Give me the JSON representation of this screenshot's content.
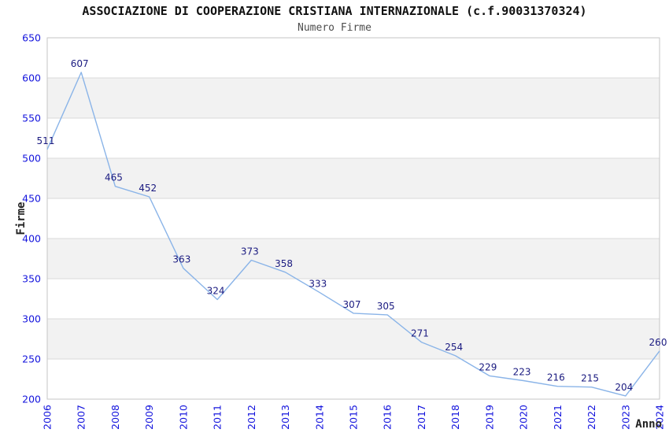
{
  "header": {
    "title": "ASSOCIAZIONE DI COOPERAZIONE CRISTIANA INTERNAZIONALE (c.f.90031370324)",
    "subtitle": "Numero Firme"
  },
  "chart_data": {
    "type": "line",
    "title": "ASSOCIAZIONE DI COOPERAZIONE CRISTIANA INTERNAZIONALE (c.f.90031370324)",
    "subtitle": "Numero Firme",
    "xlabel": "Anno",
    "ylabel": "Firme",
    "x": [
      2006,
      2007,
      2008,
      2009,
      2010,
      2011,
      2012,
      2013,
      2014,
      2015,
      2016,
      2017,
      2018,
      2019,
      2020,
      2021,
      2022,
      2023,
      2024
    ],
    "series": [
      {
        "name": "Numero Firme",
        "values": [
          511,
          607,
          465,
          452,
          363,
          324,
          373,
          358,
          333,
          307,
          305,
          271,
          254,
          229,
          223,
          216,
          215,
          204,
          260
        ]
      }
    ],
    "ylim": [
      200,
      650
    ],
    "ytick_step": 50,
    "yticks": [
      200,
      250,
      300,
      350,
      400,
      450,
      500,
      550,
      600,
      650
    ],
    "grid": true,
    "banded_background": true,
    "legend_position": "none",
    "data_labels_visible": true
  },
  "colors": {
    "line": "#8ab4e8",
    "tick_label": "#1414dd",
    "data_label": "#1a1a80",
    "gridline": "#d9d9d9",
    "plot_border": "#c6c6c6",
    "band_gray": "#f2f2f2",
    "band_white": "#ffffff",
    "title": "#111111",
    "subtitle": "#4d4d4d",
    "axis_title": "#222222",
    "background": "#ffffff"
  }
}
